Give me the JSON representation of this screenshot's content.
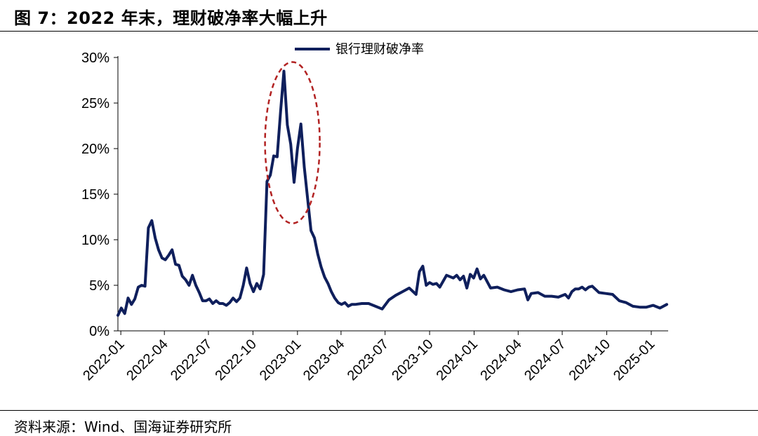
{
  "header": {
    "title": "图 7：2022 年末，理财破净率大幅上升"
  },
  "footer": {
    "source": "资料来源：Wind、国海证券研究所"
  },
  "colors": {
    "series": "#0f1f5c",
    "highlight": "#b22222"
  },
  "chart_data": {
    "type": "line",
    "title": "",
    "xlabel": "",
    "ylabel": "",
    "ylim": [
      0,
      30
    ],
    "y_ticks": [
      "0%",
      "5%",
      "10%",
      "15%",
      "20%",
      "25%",
      "30%"
    ],
    "x_ticks": [
      "2022-01",
      "2022-04",
      "2022-07",
      "2022-10",
      "2023-01",
      "2023-04",
      "2023-07",
      "2023-10",
      "2024-01",
      "2024-04",
      "2024-07",
      "2024-10",
      "2025-01"
    ],
    "legend": {
      "position": "top-center",
      "entries": [
        "银行理财破净率"
      ]
    },
    "annotation": "dashed red ellipse around the late-2022 peak",
    "series": [
      {
        "name": "银行理财破净率",
        "x": [
          "2021-12-26",
          "2022-01-02",
          "2022-01-09",
          "2022-01-16",
          "2022-01-23",
          "2022-01-30",
          "2022-02-06",
          "2022-02-13",
          "2022-02-20",
          "2022-02-27",
          "2022-03-06",
          "2022-03-13",
          "2022-03-20",
          "2022-03-27",
          "2022-04-03",
          "2022-04-10",
          "2022-04-17",
          "2022-04-24",
          "2022-05-01",
          "2022-05-08",
          "2022-05-15",
          "2022-05-22",
          "2022-05-29",
          "2022-06-05",
          "2022-06-12",
          "2022-06-19",
          "2022-06-26",
          "2022-07-03",
          "2022-07-10",
          "2022-07-17",
          "2022-07-24",
          "2022-07-31",
          "2022-08-07",
          "2022-08-14",
          "2022-08-21",
          "2022-08-28",
          "2022-09-04",
          "2022-09-11",
          "2022-09-18",
          "2022-09-25",
          "2022-10-02",
          "2022-10-09",
          "2022-10-16",
          "2022-10-23",
          "2022-10-30",
          "2022-11-06",
          "2022-11-13",
          "2022-11-20",
          "2022-11-27",
          "2022-12-04",
          "2022-12-11",
          "2022-12-18",
          "2022-12-25",
          "2023-01-01",
          "2023-01-08",
          "2023-01-15",
          "2023-01-22",
          "2023-01-29",
          "2023-02-05",
          "2023-02-12",
          "2023-02-19",
          "2023-02-26",
          "2023-03-05",
          "2023-03-12",
          "2023-03-19",
          "2023-03-26",
          "2023-04-02",
          "2023-04-09",
          "2023-04-16",
          "2023-04-23",
          "2023-04-30",
          "2023-05-14",
          "2023-05-28",
          "2023-06-11",
          "2023-06-25",
          "2023-07-09",
          "2023-07-23",
          "2023-08-06",
          "2023-08-20",
          "2023-09-03",
          "2023-09-10",
          "2023-09-17",
          "2023-09-24",
          "2023-10-01",
          "2023-10-08",
          "2023-10-15",
          "2023-10-22",
          "2023-11-05",
          "2023-11-19",
          "2023-11-26",
          "2023-12-03",
          "2023-12-10",
          "2023-12-17",
          "2023-12-24",
          "2023-12-31",
          "2024-01-07",
          "2024-01-14",
          "2024-01-21",
          "2024-02-04",
          "2024-02-18",
          "2024-03-03",
          "2024-03-17",
          "2024-03-31",
          "2024-04-14",
          "2024-04-21",
          "2024-04-28",
          "2024-05-12",
          "2024-05-26",
          "2024-06-09",
          "2024-06-23",
          "2024-07-07",
          "2024-07-14",
          "2024-07-21",
          "2024-07-28",
          "2024-08-04",
          "2024-08-11",
          "2024-08-18",
          "2024-08-25",
          "2024-09-01",
          "2024-09-15",
          "2024-09-29",
          "2024-10-13",
          "2024-10-27",
          "2024-11-10",
          "2024-11-24",
          "2024-12-08",
          "2024-12-22",
          "2025-01-05",
          "2025-01-19",
          "2025-02-02"
        ],
        "values": [
          1.7,
          2.5,
          1.9,
          3.6,
          2.9,
          3.5,
          4.8,
          5.0,
          4.9,
          11.3,
          12.1,
          10.2,
          8.9,
          8.0,
          7.8,
          8.3,
          8.9,
          7.3,
          7.2,
          6.0,
          5.6,
          5.0,
          6.1,
          5.0,
          4.2,
          3.3,
          3.3,
          3.5,
          3.0,
          3.3,
          3.0,
          3.0,
          2.8,
          3.1,
          3.6,
          3.2,
          3.6,
          5.0,
          6.9,
          5.2,
          4.3,
          5.2,
          4.6,
          6.2,
          16.4,
          17.1,
          19.2,
          19.1,
          24.0,
          28.5,
          22.6,
          20.5,
          16.3,
          20.0,
          22.7,
          18.0,
          14.5,
          11.0,
          10.2,
          8.4,
          7.0,
          5.9,
          5.2,
          4.3,
          3.6,
          3.1,
          2.9,
          3.1,
          2.7,
          2.9,
          2.9,
          3.0,
          3.0,
          2.7,
          2.4,
          3.4,
          3.9,
          4.3,
          4.7,
          4.0,
          6.5,
          7.1,
          5.0,
          5.3,
          5.1,
          5.2,
          4.8,
          6.1,
          5.8,
          6.1,
          5.6,
          6.0,
          4.7,
          6.2,
          5.8,
          6.8,
          5.7,
          6.1,
          4.7,
          4.8,
          4.5,
          4.3,
          4.5,
          4.6,
          3.4,
          4.1,
          4.2,
          3.8,
          3.8,
          3.7,
          4.0,
          3.6,
          4.3,
          4.6,
          4.6,
          4.8,
          4.5,
          4.8,
          4.9,
          4.2,
          4.1,
          4.0,
          3.3,
          3.1,
          2.7,
          2.6,
          2.6,
          2.8,
          2.5,
          2.9
        ]
      }
    ]
  }
}
